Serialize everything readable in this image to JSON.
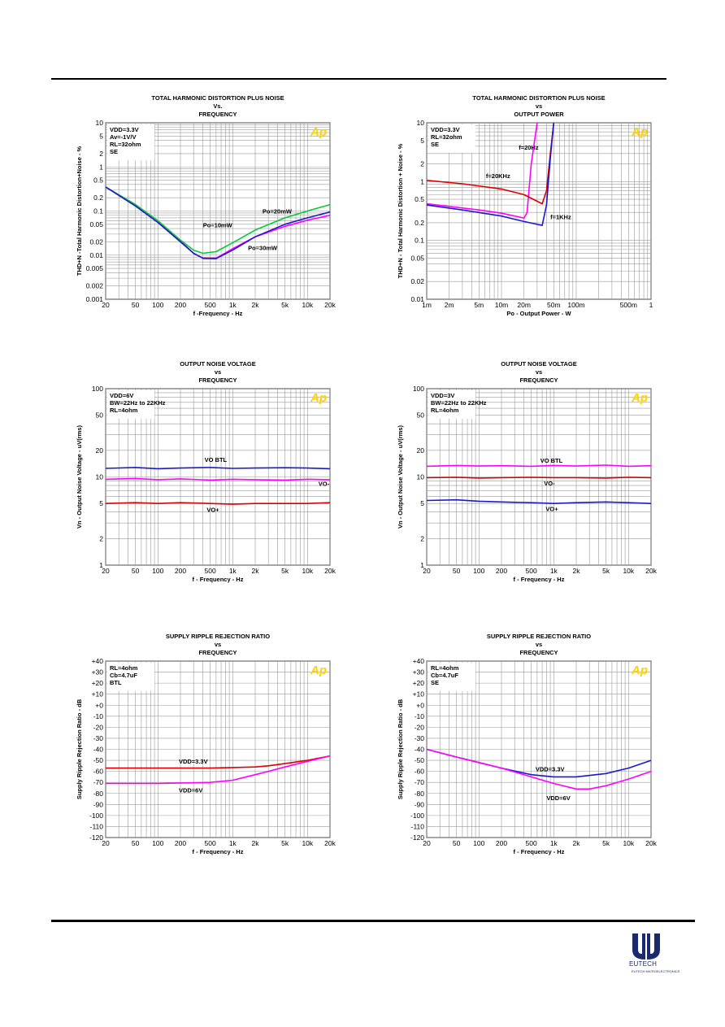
{
  "brand": {
    "name": "EUTECH",
    "tagline": "EUTECH MICROELECTRONICS"
  },
  "chart_data": [
    {
      "id": "c1",
      "type": "line",
      "title": [
        "TOTAL HARMONIC DISTORTION PLUS NOISE",
        "Vs.",
        "FREQUENCY"
      ],
      "xlabel": "f -Frequency - Hz",
      "ylabel": "THD+N -Total Harmonic Distortion+Noise - %",
      "xscale": "log",
      "xlim": [
        20,
        20000
      ],
      "yscale": "log",
      "ylim": [
        0.001,
        10
      ],
      "xticks": [
        20,
        50,
        100,
        200,
        500,
        1000,
        2000,
        5000,
        10000,
        20000
      ],
      "xticklabels": [
        "20",
        "50",
        "100",
        "200",
        "500",
        "1k",
        "2k",
        "5k",
        "10k",
        "20k"
      ],
      "yticks": [
        10,
        5,
        2,
        1,
        0.5,
        0.2,
        0.1,
        0.05,
        0.02,
        0.01,
        0.005,
        0.002,
        0.001
      ],
      "yticklabels": [
        "10",
        "5",
        "2",
        "1",
        "0.5",
        "0.2",
        "0.1",
        "0.05",
        "0.02",
        "0.01",
        "0.005",
        "0.002",
        "0.001"
      ],
      "conditions": [
        "VDD=3.3V",
        "Av=-1V/V",
        "RL=32ohm",
        "SE"
      ],
      "series": [
        {
          "name": "Po=10mW",
          "color": "#ff00ff",
          "x": [
            20,
            50,
            100,
            200,
            300,
            400,
            600,
            1000,
            2000,
            5000,
            10000,
            20000
          ],
          "y": [
            0.35,
            0.14,
            0.06,
            0.021,
            0.011,
            0.0085,
            0.0085,
            0.014,
            0.026,
            0.045,
            0.062,
            0.08
          ]
        },
        {
          "name": "Po=20mW",
          "color": "#00cc33",
          "x": [
            20,
            50,
            100,
            200,
            300,
            400,
            600,
            1000,
            2000,
            5000,
            10000,
            20000
          ],
          "y": [
            0.35,
            0.14,
            0.06,
            0.022,
            0.013,
            0.011,
            0.012,
            0.019,
            0.037,
            0.07,
            0.1,
            0.14
          ]
        },
        {
          "name": "Po=30mW",
          "color": "#1a1acc",
          "x": [
            20,
            50,
            100,
            200,
            300,
            400,
            600,
            1000,
            2000,
            5000,
            10000,
            20000
          ],
          "y": [
            0.35,
            0.13,
            0.055,
            0.02,
            0.011,
            0.0085,
            0.0083,
            0.013,
            0.026,
            0.05,
            0.07,
            0.095
          ]
        }
      ],
      "labels": [
        {
          "text": "Po=10mW",
          "x": 400,
          "y": 0.043
        },
        {
          "text": "Po=20mW",
          "x": 2500,
          "y": 0.088
        },
        {
          "text": "Po=30mW",
          "x": 1600,
          "y": 0.013
        }
      ]
    },
    {
      "id": "c2",
      "type": "line",
      "title": [
        "TOTAL HARMONIC DISTORTION PLUS NOISE",
        "vs",
        "OUTPUT POWER"
      ],
      "xlabel": "Po - Output Power - W",
      "ylabel": "THD+N - Total Harmonic Distortion + Noise - %",
      "xscale": "log",
      "xlim": [
        0.001,
        1
      ],
      "yscale": "log",
      "ylim": [
        0.01,
        10
      ],
      "xticks": [
        0.001,
        0.002,
        0.005,
        0.01,
        0.02,
        0.05,
        0.1,
        0.5,
        1
      ],
      "xticklabels": [
        "1m",
        "2m",
        "5m",
        "10m",
        "20m",
        "50m",
        "100m",
        "500m",
        "1"
      ],
      "yticks": [
        10,
        5,
        2,
        1,
        0.5,
        0.2,
        0.1,
        0.05,
        0.02,
        0.01
      ],
      "yticklabels": [
        "10",
        "5",
        "2",
        "1",
        "0.5",
        "0.2",
        "0.1",
        "0.05",
        "0.02",
        "0.01"
      ],
      "conditions": [
        "VDD=3.3V",
        "RL=32ohm",
        "SE"
      ],
      "series": [
        {
          "name": "f=20Hz",
          "color": "#ff00ff",
          "x": [
            0.001,
            0.005,
            0.01,
            0.02,
            0.022,
            0.025,
            0.03
          ],
          "y": [
            0.42,
            0.33,
            0.29,
            0.24,
            0.3,
            2.0,
            10
          ]
        },
        {
          "name": "f=20KHz",
          "color": "#dd0000",
          "x": [
            0.001,
            0.003,
            0.01,
            0.02,
            0.035,
            0.04,
            0.045,
            0.05
          ],
          "y": [
            1.05,
            0.92,
            0.75,
            0.6,
            0.42,
            0.7,
            3,
            10
          ]
        },
        {
          "name": "f=1KHz",
          "color": "#1a1acc",
          "x": [
            0.001,
            0.003,
            0.01,
            0.02,
            0.035,
            0.04,
            0.045,
            0.05
          ],
          "y": [
            0.4,
            0.33,
            0.26,
            0.21,
            0.18,
            0.4,
            2.5,
            10
          ]
        }
      ],
      "labels": [
        {
          "text": "f=20Hz",
          "x": 0.017,
          "y": 3.5
        },
        {
          "text": "f=20KHz",
          "x": 0.0062,
          "y": 1.15
        },
        {
          "text": "f=1KHz",
          "x": 0.045,
          "y": 0.23
        }
      ]
    },
    {
      "id": "c3",
      "type": "line",
      "title": [
        "OUTPUT NOISE VOLTAGE",
        "vs",
        "FREQUENCY"
      ],
      "xlabel": "f - Frequency - Hz",
      "ylabel": "Vn - Output Noise Voltage - uV(rms)",
      "xscale": "log",
      "xlim": [
        20,
        20000
      ],
      "yscale": "log",
      "ylim": [
        1,
        100
      ],
      "xticks": [
        20,
        50,
        100,
        200,
        500,
        1000,
        2000,
        5000,
        10000,
        20000
      ],
      "xticklabels": [
        "20",
        "50",
        "100",
        "200",
        "500",
        "1k",
        "2k",
        "5k",
        "10k",
        "20k"
      ],
      "yticks": [
        100,
        50,
        20,
        10,
        5,
        2,
        1
      ],
      "yticklabels": [
        "100",
        "50",
        "20",
        "10",
        "5",
        "2",
        "1"
      ],
      "conditions": [
        "VDD=6V",
        "BW=22Hz to 22KHz",
        "RL=4ohm"
      ],
      "series": [
        {
          "name": "VO BTL",
          "color": "#1a1acc",
          "x": [
            20,
            50,
            100,
            200,
            500,
            1000,
            2000,
            5000,
            10000,
            20000
          ],
          "y": [
            12.5,
            12.8,
            12.4,
            12.6,
            12.8,
            12.5,
            12.6,
            12.7,
            12.6,
            12.4
          ]
        },
        {
          "name": "VO-",
          "color": "#ff00ff",
          "x": [
            20,
            50,
            100,
            200,
            500,
            1000,
            2000,
            5000,
            10000,
            20000
          ],
          "y": [
            9.4,
            9.6,
            9.3,
            9.5,
            9.2,
            9.4,
            9.3,
            9.2,
            9.4,
            9.3
          ]
        },
        {
          "name": "VO+",
          "color": "#dd0000",
          "x": [
            20,
            50,
            100,
            200,
            500,
            1000,
            2000,
            5000,
            10000,
            20000
          ],
          "y": [
            5.0,
            5.1,
            5.0,
            5.1,
            5.0,
            4.9,
            5.0,
            5.0,
            5.0,
            5.1
          ]
        }
      ],
      "labels": [
        {
          "text": "VO BTL",
          "x": 420,
          "y": 14.8
        },
        {
          "text": "VO-",
          "x": 14000,
          "y": 7.9
        },
        {
          "text": "VO+",
          "x": 450,
          "y": 4.0
        }
      ]
    },
    {
      "id": "c4",
      "type": "line",
      "title": [
        "OUTPUT NOISE VOLTAGE",
        "vs",
        "FREQUENCY"
      ],
      "xlabel": "f - Frequency - Hz",
      "ylabel": "Vn - Output Noise Voltage - uV(rms)",
      "xscale": "log",
      "xlim": [
        20,
        20000
      ],
      "yscale": "log",
      "ylim": [
        1,
        100
      ],
      "xticks": [
        20,
        50,
        100,
        200,
        500,
        1000,
        2000,
        5000,
        10000,
        20000
      ],
      "xticklabels": [
        "20",
        "50",
        "100",
        "200",
        "500",
        "1k",
        "2k",
        "5k",
        "10k",
        "20k"
      ],
      "yticks": [
        100,
        50,
        20,
        10,
        5,
        2,
        1
      ],
      "yticklabels": [
        "100",
        "50",
        "20",
        "10",
        "5",
        "2",
        "1"
      ],
      "conditions": [
        "VDD=3V",
        "BW=22Hz to 22KHz",
        "RL=4ohm"
      ],
      "series": [
        {
          "name": "VO BTL",
          "color": "#ff00ff",
          "x": [
            20,
            50,
            100,
            200,
            500,
            1000,
            2000,
            5000,
            10000,
            20000
          ],
          "y": [
            13.2,
            13.5,
            13.3,
            13.4,
            13.2,
            13.5,
            13.3,
            13.6,
            13.2,
            13.4
          ]
        },
        {
          "name": "VO-",
          "color": "#dd0000",
          "x": [
            20,
            50,
            100,
            200,
            500,
            1000,
            2000,
            5000,
            10000,
            20000
          ],
          "y": [
            9.8,
            9.9,
            9.7,
            9.8,
            9.9,
            9.8,
            9.8,
            9.7,
            9.9,
            9.8
          ]
        },
        {
          "name": "VO+",
          "color": "#1a1acc",
          "x": [
            20,
            50,
            100,
            200,
            500,
            1000,
            2000,
            5000,
            10000,
            20000
          ],
          "y": [
            5.4,
            5.5,
            5.3,
            5.2,
            5.1,
            5.0,
            5.1,
            5.2,
            5.1,
            5.0
          ]
        }
      ],
      "labels": [
        {
          "text": "VO BTL",
          "x": 660,
          "y": 14.5
        },
        {
          "text": "VO-",
          "x": 740,
          "y": 8.0
        },
        {
          "text": "VO+",
          "x": 780,
          "y": 4.1
        }
      ]
    },
    {
      "id": "c5",
      "type": "line",
      "title": [
        "SUPPLY RIPPLE REJECTION RATIO",
        "vs",
        "FREQUENCY"
      ],
      "xlabel": "f - Frequency - Hz",
      "ylabel": "Supply Ripple Rejection Ratio - dB",
      "xscale": "log",
      "xlim": [
        20,
        20000
      ],
      "yscale": "linear",
      "ylim": [
        -120,
        40
      ],
      "xticks": [
        20,
        50,
        100,
        200,
        500,
        1000,
        2000,
        5000,
        10000,
        20000
      ],
      "xticklabels": [
        "20",
        "50",
        "100",
        "200",
        "500",
        "1k",
        "2k",
        "5k",
        "10k",
        "20k"
      ],
      "yticks": [
        40,
        30,
        20,
        10,
        0,
        -10,
        -20,
        -30,
        -40,
        -50,
        -60,
        -70,
        -80,
        -90,
        -100,
        -110,
        -120
      ],
      "yticklabels": [
        "+40",
        "+30",
        "+20",
        "+10",
        "+0",
        "-10",
        "-20",
        "-30",
        "-40",
        "-50",
        "-60",
        "-70",
        "-80",
        "-90",
        "-100",
        "-110",
        "-120"
      ],
      "conditions": [
        "RL=4ohm",
        "Cb=4.7uF",
        "BTL"
      ],
      "series": [
        {
          "name": "VDD=3.3V",
          "color": "#dd0000",
          "x": [
            20,
            100,
            500,
            1000,
            2000,
            3000,
            5000,
            10000,
            20000
          ],
          "y": [
            -57,
            -57,
            -57,
            -56.5,
            -56,
            -55,
            -53,
            -50,
            -46
          ]
        },
        {
          "name": "VDD=6V",
          "color": "#ff00ff",
          "x": [
            20,
            100,
            500,
            1000,
            2000,
            3000,
            5000,
            10000,
            20000
          ],
          "y": [
            -71,
            -71,
            -70,
            -68,
            -63,
            -60,
            -56,
            -51,
            -46
          ]
        }
      ],
      "labels": [
        {
          "text": "VDD=3.3V",
          "x": 190,
          "y": -53
        },
        {
          "text": "VDD=6V",
          "x": 190,
          "y": -79
        }
      ]
    },
    {
      "id": "c6",
      "type": "line",
      "title": [
        "SUPPLY RIPPLE REJECTION RATIO",
        "vs",
        "FREQUENCY"
      ],
      "xlabel": "f - Frequency - Hz",
      "ylabel": "Supply Ripple Rejection Ratio - dB",
      "xscale": "log",
      "xlim": [
        20,
        20000
      ],
      "yscale": "linear",
      "ylim": [
        -120,
        40
      ],
      "xticks": [
        20,
        50,
        100,
        200,
        500,
        1000,
        2000,
        5000,
        10000,
        20000
      ],
      "xticklabels": [
        "20",
        "50",
        "100",
        "200",
        "500",
        "1k",
        "2k",
        "5k",
        "10k",
        "20k"
      ],
      "yticks": [
        40,
        30,
        20,
        10,
        0,
        -10,
        -20,
        -30,
        -40,
        -50,
        -60,
        -70,
        -80,
        -90,
        -100,
        -110,
        -120
      ],
      "yticklabels": [
        "+40",
        "+30",
        "+20",
        "+10",
        "+0",
        "-10",
        "-20",
        "-30",
        "-40",
        "-50",
        "-60",
        "-70",
        "-80",
        "-90",
        "-100",
        "-110",
        "-120"
      ],
      "conditions": [
        "RL=4ohm",
        "Cb=4.7uF",
        "SE"
      ],
      "series": [
        {
          "name": "VDD=3.3V",
          "color": "#1a1acc",
          "x": [
            20,
            50,
            100,
            200,
            500,
            1000,
            2000,
            5000,
            10000,
            20000
          ],
          "y": [
            -40,
            -47,
            -52,
            -57,
            -63,
            -65,
            -65,
            -62,
            -57,
            -50
          ]
        },
        {
          "name": "VDD=6V",
          "color": "#ff00ff",
          "x": [
            20,
            50,
            100,
            200,
            500,
            1000,
            2000,
            3000,
            5000,
            10000,
            20000
          ],
          "y": [
            -40,
            -47,
            -52,
            -57,
            -65,
            -71,
            -76,
            -76,
            -73,
            -67,
            -60
          ]
        }
      ],
      "labels": [
        {
          "text": "VDD=3.3V",
          "x": 570,
          "y": -60
        },
        {
          "text": "VDD=6V",
          "x": 800,
          "y": -86
        }
      ]
    }
  ]
}
